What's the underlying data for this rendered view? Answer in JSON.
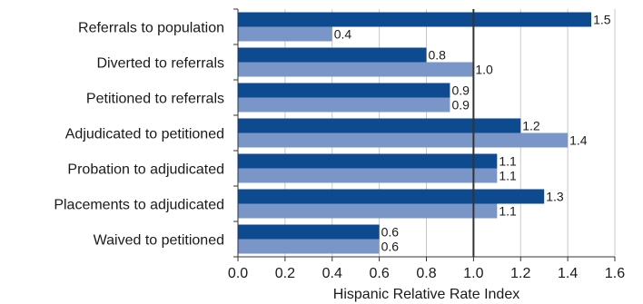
{
  "chart_data": {
    "type": "bar",
    "orientation": "horizontal",
    "categories": [
      "Referrals to population",
      "Diverted to referrals",
      "Petitioned to referrals",
      "Adjudicated to petitioned",
      "Probation to adjudicated",
      "Placements to adjudicated",
      "Waived to petitioned"
    ],
    "series": [
      {
        "values": [
          1.5,
          0.8,
          0.9,
          1.2,
          1.1,
          1.3,
          0.6
        ],
        "color": "#0d4a8f"
      },
      {
        "values": [
          0.4,
          1.0,
          0.9,
          1.4,
          1.1,
          1.1,
          0.6
        ],
        "color": "#7a96c8"
      }
    ],
    "data_labels": [
      [
        "1.5",
        "0.8",
        "0.9",
        "1.2",
        "1.1",
        "1.3",
        "0.6"
      ],
      [
        "0.4",
        "1.0",
        "0.9",
        "1.4",
        "1.1",
        "1.1",
        "0.6"
      ]
    ],
    "xlabel": "Hispanic Relative Rate Index",
    "xlim": [
      0,
      1.6
    ],
    "xticks": [
      "0.0",
      "0.2",
      "0.4",
      "0.6",
      "0.8",
      "1.0",
      "1.2",
      "1.4",
      "1.6"
    ],
    "reference_line": 1.0,
    "grid": true,
    "legend": "none"
  }
}
